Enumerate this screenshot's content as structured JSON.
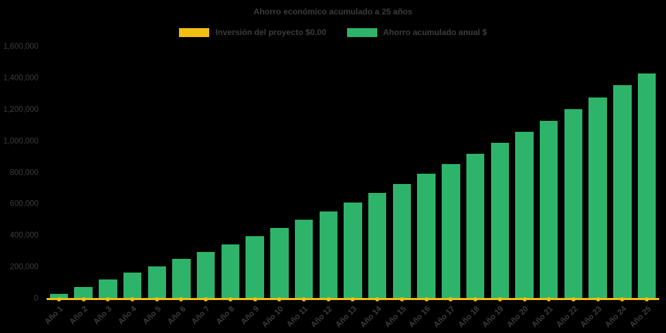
{
  "colors": {
    "background": "#000000",
    "text": "#3c3c3c",
    "investment_yellow": "#f2c011",
    "savings_green": "#2eb46a"
  },
  "chart_data": {
    "type": "bar",
    "title": "Ahorro económico acumulado a 25 años",
    "categories": [
      "Año 1",
      "Año 2",
      "Año 3",
      "Año 4",
      "Año 5",
      "Año 6",
      "Año 7",
      "Año 8",
      "Año 9",
      "Año 10",
      "Año 11",
      "Año 12",
      "Año 13",
      "Año 14",
      "Año 15",
      "Año 16",
      "Año 17",
      "Año 18",
      "Año 19",
      "Año 20",
      "Año 21",
      "Año 22",
      "Año 23",
      "Año 24",
      "Año 25"
    ],
    "series": [
      {
        "name": "Inversión del proyecto $0.00",
        "type": "line",
        "color": "#f2c011",
        "values": [
          0,
          0,
          0,
          0,
          0,
          0,
          0,
          0,
          0,
          0,
          0,
          0,
          0,
          0,
          0,
          0,
          0,
          0,
          0,
          0,
          0,
          0,
          0,
          0,
          0
        ]
      },
      {
        "name": "Ahorro acumulado anual $",
        "type": "bar",
        "color": "#2eb46a",
        "values": [
          30000,
          75000,
          120000,
          165000,
          207000,
          252000,
          298000,
          346000,
          396000,
          447000,
          500000,
          555000,
          612000,
          670000,
          730000,
          792000,
          856000,
          922000,
          989000,
          1058000,
          1129000,
          1202000,
          1277000,
          1354000,
          1432000
        ]
      }
    ],
    "xlabel": "",
    "ylabel": "",
    "ylim": [
      0,
      1600000
    ],
    "yticks": [
      0,
      200000,
      400000,
      600000,
      800000,
      1000000,
      1200000,
      1400000,
      1600000
    ],
    "grid": false,
    "legend_position": "top-center"
  }
}
